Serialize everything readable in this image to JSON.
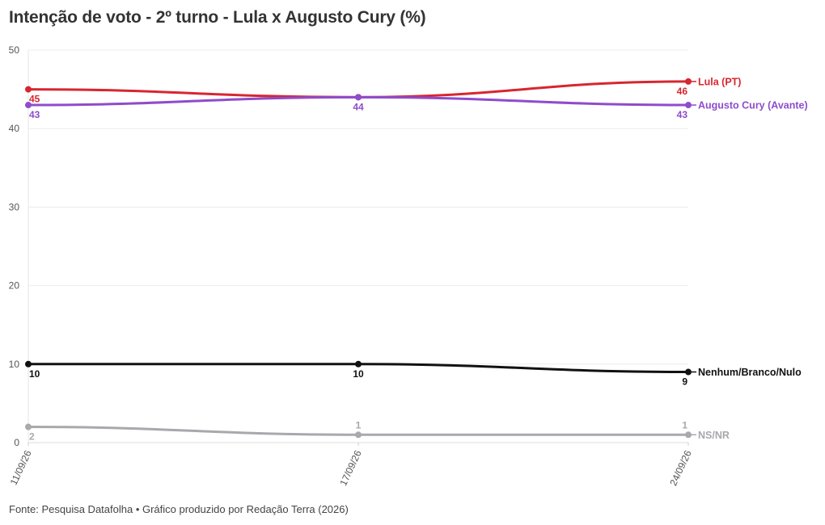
{
  "title": "Intenção de voto - 2º turno - Lula x Augusto Cury (%)",
  "footer": "Fonte: Pesquisa Datafolha • Gráfico produzido por Redação Terra (2026)",
  "chart_data": {
    "type": "line",
    "title": "Intenção de voto - 2º turno - Lula x Augusto Cury (%)",
    "x": [
      "11/09/26",
      "17/09/26",
      "24/09/26"
    ],
    "ylim": [
      0,
      50
    ],
    "yticks": [
      0,
      10,
      20,
      30,
      40,
      50
    ],
    "grid": true,
    "legend": "direct labels at right end of each line",
    "series": [
      {
        "name": "Lula (PT)",
        "color": "#d7262f",
        "values": [
          45,
          44,
          46
        ],
        "labels": [
          "45",
          "",
          "46"
        ],
        "label_pos": [
          "below",
          "below",
          "below"
        ]
      },
      {
        "name": "Augusto Cury (Avante)",
        "color": "#8e4ccc",
        "values": [
          43,
          44,
          43
        ],
        "labels": [
          "43",
          "44",
          "43"
        ],
        "label_pos": [
          "below",
          "below",
          "below"
        ]
      },
      {
        "name": "Nenhum/Branco/Nulo",
        "color": "#111111",
        "values": [
          10,
          10,
          9
        ],
        "labels": [
          "10",
          "10",
          "9"
        ],
        "label_pos": [
          "below",
          "below",
          "below"
        ]
      },
      {
        "name": "NS/NR",
        "color": "#a8a8ad",
        "values": [
          2,
          1,
          1
        ],
        "labels": [
          "2",
          "1",
          "1"
        ],
        "label_pos": [
          "below",
          "above",
          "above"
        ]
      }
    ]
  }
}
